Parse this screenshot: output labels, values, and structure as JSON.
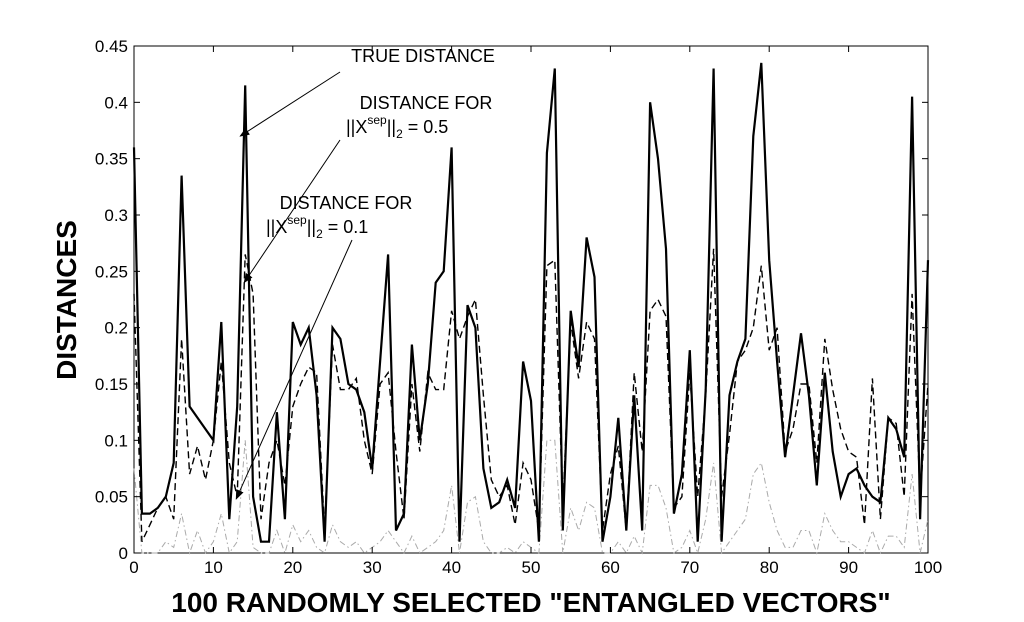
{
  "chart_data": {
    "type": "line",
    "xlabel": "100 RANDOMLY SELECTED \"ENTANGLED VECTORS\"",
    "ylabel": "DISTANCES",
    "xlim": [
      0,
      100
    ],
    "ylim": [
      0,
      0.45
    ],
    "xticks": [
      0,
      10,
      20,
      30,
      40,
      50,
      60,
      70,
      80,
      90,
      100
    ],
    "yticks": [
      0,
      0.05,
      0.1,
      0.15,
      0.2,
      0.25,
      0.3,
      0.35,
      0.4,
      0.45
    ],
    "ytick_labels": [
      "0",
      "0.05",
      "0.1",
      "0.15",
      "0.2",
      "0.25",
      "0.3",
      "0.35",
      "0.4",
      "0.45"
    ],
    "grid": false,
    "annotations": [
      {
        "lines": [
          "TRUE DISTANCE"
        ],
        "target": [
          13,
          0.37
        ]
      },
      {
        "lines": [
          "DISTANCE FOR",
          "||X",
          "sep",
          "||",
          "2",
          " = 0.5"
        ],
        "target": [
          14,
          0.24
        ]
      },
      {
        "lines": [
          "DISTANCE FOR",
          "||X",
          "sep",
          "||",
          "2",
          " = 0.1"
        ],
        "target": [
          13,
          0.048
        ]
      }
    ],
    "series": [
      {
        "style": "solid",
        "values": [
          0.36,
          0.035,
          0.035,
          0.04,
          0.05,
          0.08,
          0.335,
          0.13,
          0.12,
          0.11,
          0.1,
          0.205,
          0.03,
          0.13,
          0.415,
          0.05,
          0.01,
          0.01,
          0.125,
          0.03,
          0.205,
          0.185,
          0.2,
          0.14,
          0.01,
          0.2,
          0.19,
          0.15,
          0.145,
          0.125,
          0.075,
          0.17,
          0.265,
          0.02,
          0.035,
          0.185,
          0.1,
          0.15,
          0.24,
          0.25,
          0.36,
          0.01,
          0.22,
          0.2,
          0.075,
          0.04,
          0.045,
          0.065,
          0.04,
          0.17,
          0.135,
          0.01,
          0.355,
          0.43,
          0.02,
          0.215,
          0.165,
          0.28,
          0.245,
          0.01,
          0.05,
          0.12,
          0.02,
          0.14,
          0.02,
          0.4,
          0.35,
          0.27,
          0.035,
          0.07,
          0.18,
          0.01,
          0.145,
          0.43,
          0.01,
          0.14,
          0.17,
          0.19,
          0.37,
          0.435,
          0.26,
          0.17,
          0.085,
          0.14,
          0.195,
          0.14,
          0.06,
          0.16,
          0.09,
          0.05,
          0.07,
          0.075,
          0.06,
          0.05,
          0.045,
          0.12,
          0.11,
          0.085,
          0.405,
          0.03,
          0.26
        ]
      },
      {
        "style": "dashed",
        "values": [
          0.23,
          0.01,
          0.025,
          0.04,
          0.05,
          0.03,
          0.19,
          0.07,
          0.095,
          0.065,
          0.1,
          0.17,
          0.08,
          0.05,
          0.265,
          0.23,
          0.03,
          0.08,
          0.1,
          0.06,
          0.13,
          0.15,
          0.165,
          0.16,
          0.02,
          0.185,
          0.145,
          0.145,
          0.155,
          0.1,
          0.07,
          0.15,
          0.16,
          0.09,
          0.03,
          0.15,
          0.09,
          0.16,
          0.145,
          0.145,
          0.215,
          0.19,
          0.21,
          0.225,
          0.14,
          0.065,
          0.05,
          0.06,
          0.025,
          0.08,
          0.065,
          0.02,
          0.255,
          0.26,
          0.04,
          0.205,
          0.155,
          0.205,
          0.19,
          0.02,
          0.07,
          0.095,
          0.02,
          0.16,
          0.09,
          0.215,
          0.225,
          0.21,
          0.04,
          0.05,
          0.16,
          0.05,
          0.14,
          0.27,
          0.05,
          0.105,
          0.17,
          0.18,
          0.2,
          0.255,
          0.18,
          0.2,
          0.09,
          0.11,
          0.15,
          0.15,
          0.08,
          0.19,
          0.145,
          0.11,
          0.09,
          0.085,
          0.025,
          0.155,
          0.03,
          0.12,
          0.115,
          0.05,
          0.23,
          0.05,
          0.15
        ]
      },
      {
        "style": "dashdot-light",
        "values": [
          0.075,
          0,
          0,
          0,
          0.01,
          0.005,
          0.035,
          0,
          0.02,
          0,
          0.01,
          0.035,
          0,
          0.01,
          0.1,
          0.005,
          0,
          0,
          0.02,
          0,
          0.025,
          0.01,
          0.02,
          0.005,
          0,
          0.025,
          0.01,
          0.005,
          0.01,
          0,
          0.005,
          0.01,
          0.02,
          0.01,
          0,
          0.015,
          0,
          0.005,
          0.01,
          0.02,
          0.06,
          0,
          0.045,
          0.05,
          0.01,
          0,
          0,
          0.005,
          0,
          0.01,
          0.005,
          0,
          0.1,
          0.1,
          0,
          0.04,
          0.02,
          0.045,
          0.04,
          0,
          0,
          0.01,
          0,
          0.015,
          0,
          0.06,
          0.06,
          0.04,
          0,
          0.005,
          0.02,
          0,
          0.03,
          0.08,
          0,
          0.01,
          0.02,
          0.03,
          0.07,
          0.08,
          0.045,
          0.02,
          0.005,
          0.005,
          0.02,
          0.02,
          0,
          0.035,
          0.02,
          0.01,
          0.01,
          0.005,
          0,
          0.02,
          0,
          0.015,
          0.015,
          0.005,
          0.07,
          0,
          0.03
        ]
      }
    ]
  }
}
